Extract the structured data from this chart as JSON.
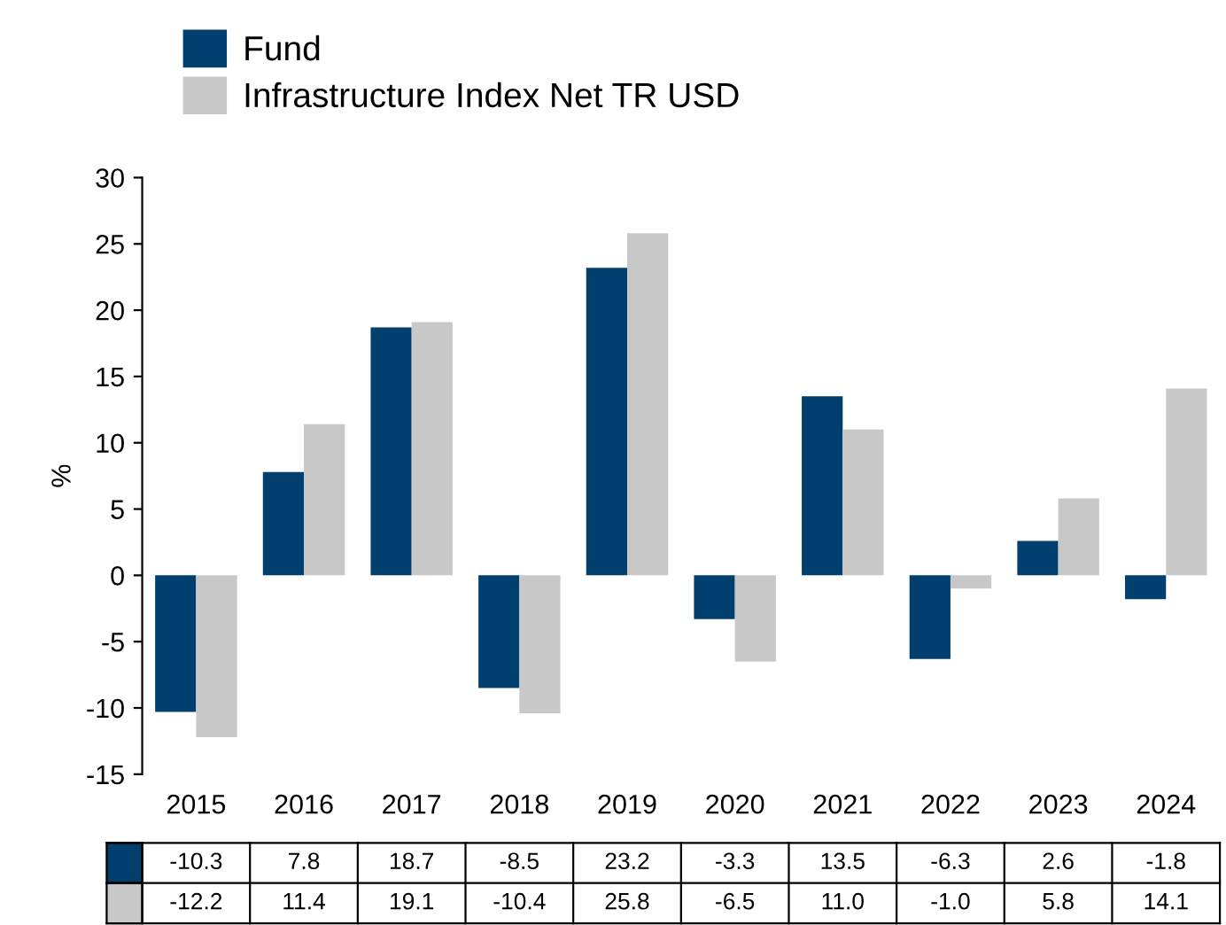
{
  "chart_data": {
    "type": "bar",
    "ylabel": "%",
    "categories": [
      "2015",
      "2016",
      "2017",
      "2018",
      "2019",
      "2020",
      "2021",
      "2022",
      "2023",
      "2024"
    ],
    "series": [
      {
        "name": "Fund",
        "color": "#003f6e",
        "values": [
          -10.3,
          7.8,
          18.7,
          -8.5,
          23.2,
          -3.3,
          13.5,
          -6.3,
          2.6,
          -1.8
        ],
        "value_labels": [
          "-10.3",
          "7.8",
          "18.7",
          "-8.5",
          "23.2",
          "-3.3",
          "13.5",
          "-6.3",
          "2.6",
          "-1.8"
        ]
      },
      {
        "name": "Infrastructure Index Net TR USD",
        "color": "#c8c8c8",
        "values": [
          -12.2,
          11.4,
          19.1,
          -10.4,
          25.8,
          -6.5,
          11.0,
          -1.0,
          5.8,
          14.1
        ],
        "value_labels": [
          "-12.2",
          "11.4",
          "19.1",
          "-10.4",
          "25.8",
          "-6.5",
          "11.0",
          "-1.0",
          "5.8",
          "14.1"
        ]
      }
    ],
    "ylim": [
      -15,
      30
    ],
    "yticks": [
      -15,
      -10,
      -5,
      0,
      5,
      10,
      15,
      20,
      25,
      30
    ],
    "grid": false,
    "legend": "top left"
  }
}
